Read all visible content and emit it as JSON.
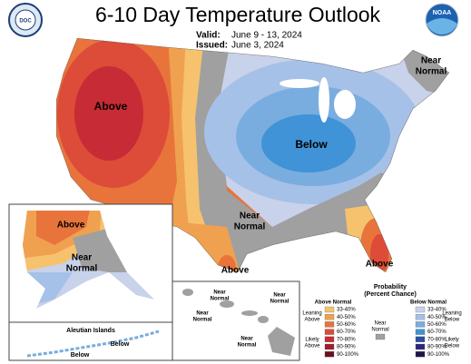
{
  "header": {
    "title": "6-10 Day Temperature Outlook",
    "valid_label": "Valid:",
    "valid": "June 9 - 13, 2024",
    "issued_label": "Issued:",
    "issued": "June 3, 2024",
    "left_logo": "DOC",
    "right_logo": "NOAA"
  },
  "map_labels": {
    "west_above": "Above",
    "central_below": "Below",
    "northeast_near": [
      "Near",
      "Normal"
    ],
    "south_near": [
      "Near",
      "Normal"
    ],
    "texas_above": "Above",
    "florida_above": "Above",
    "alaska_above": "Above",
    "alaska_near": [
      "Near",
      "Normal"
    ],
    "aleutian_title": "Aleutian Islands",
    "aleutian_below_1": "Below",
    "aleutian_below_2": "Below",
    "hawaii_near_1": [
      "Near",
      "Normal"
    ],
    "hawaii_near_2": [
      "Near",
      "Normal"
    ],
    "hawaii_near_3": [
      "Near",
      "Normal"
    ],
    "hawaii_near_4": [
      "Near",
      "Normal"
    ]
  },
  "legend": {
    "title": [
      "Probability",
      "(Percent Chance)"
    ],
    "above_header": "Above Normal",
    "below_header": "Below Normal",
    "above": [
      {
        "range": "33-40%",
        "color": "#f7c26d"
      },
      {
        "range": "40-50%",
        "color": "#f0a14f"
      },
      {
        "range": "50-60%",
        "color": "#e8743b"
      },
      {
        "range": "60-70%",
        "color": "#dc4c39"
      },
      {
        "range": "70-80%",
        "color": "#c72b35"
      },
      {
        "range": "80-90%",
        "color": "#9e1f2b"
      },
      {
        "range": "90-100%",
        "color": "#6a1020"
      }
    ],
    "below": [
      {
        "range": "33-40%",
        "color": "#c8d2ea"
      },
      {
        "range": "40-50%",
        "color": "#a6c1e8"
      },
      {
        "range": "50-60%",
        "color": "#79addf"
      },
      {
        "range": "60-70%",
        "color": "#3f93d6"
      },
      {
        "range": "70-80%",
        "color": "#2a4fa0"
      },
      {
        "range": "80-90%",
        "color": "#2a2680"
      },
      {
        "range": "90-100%",
        "color": "#1f1548"
      }
    ],
    "near_normal": [
      "Near",
      "Normal"
    ],
    "near_color": "#a0a0a0",
    "leaning_above": [
      "Leaning",
      "Above"
    ],
    "likely_above": [
      "Likely",
      "Above"
    ],
    "leaning_below": [
      "Leaning",
      "Below"
    ],
    "likely_below": [
      "Likely",
      "Below"
    ]
  }
}
